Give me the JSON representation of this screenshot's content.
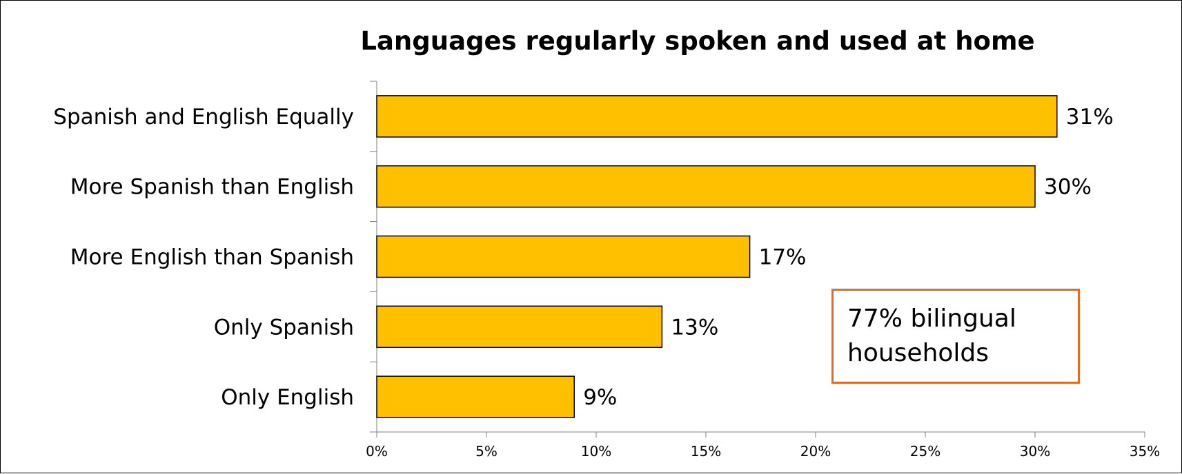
{
  "chart_data": {
    "type": "bar",
    "orientation": "horizontal",
    "title": "Languages regularly spoken and used at home",
    "xlabel": "",
    "ylabel": "",
    "categories": [
      "Spanish and English Equally",
      "More Spanish than English",
      "More English than Spanish",
      "Only Spanish",
      "Only English"
    ],
    "values": [
      31,
      30,
      17,
      13,
      9
    ],
    "data_labels": [
      "31%",
      "30%",
      "17%",
      "13%",
      "9%"
    ],
    "xlim": [
      0,
      35
    ],
    "x_ticks": [
      "0%",
      "5%",
      "10%",
      "15%",
      "20%",
      "25%",
      "30%",
      "35%"
    ],
    "grid": false,
    "legend": "none",
    "bar_color": "#ffc000",
    "bar_edge_color": "#000000"
  },
  "callout": {
    "line1": "77% bilingual",
    "line2": "households",
    "border_color": "#e36c25"
  }
}
